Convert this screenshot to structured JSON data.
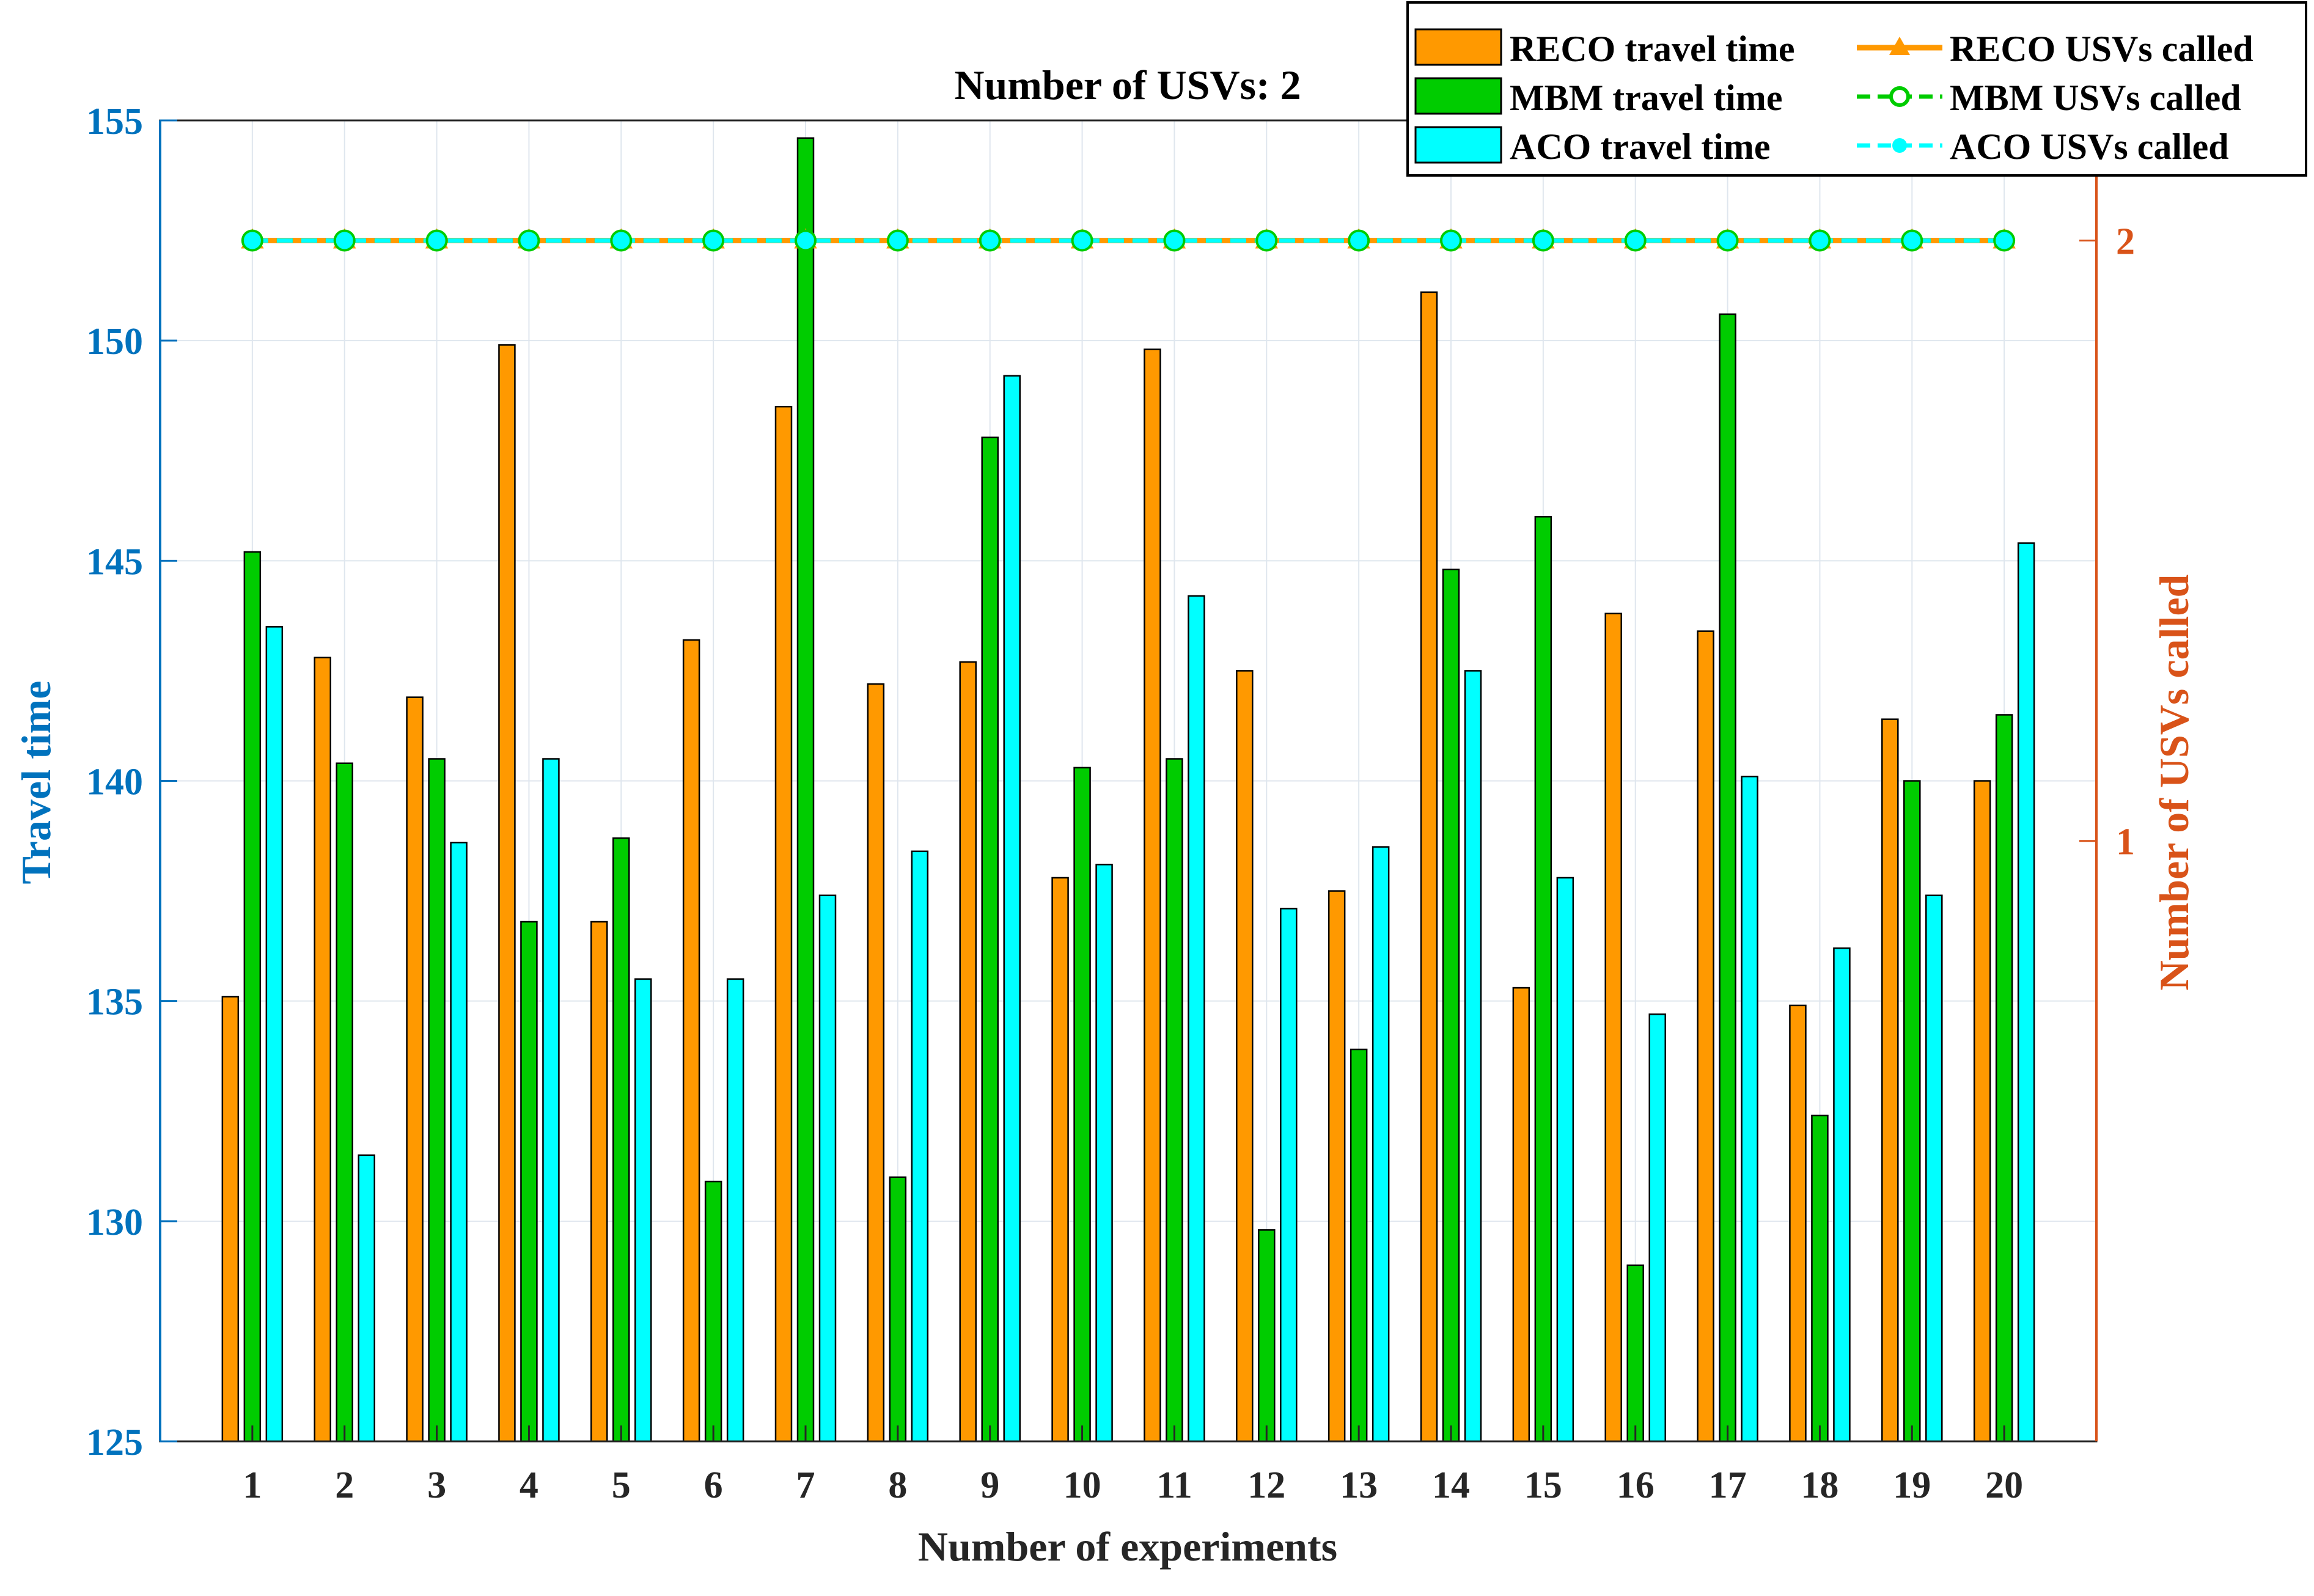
{
  "chart_data": {
    "type": "bar",
    "title": "Number of USVs: 2",
    "xlabel": "Number of experiments",
    "ylabel": "Travel time",
    "y2label": "Number of USVs called",
    "categories": [
      "1",
      "2",
      "3",
      "4",
      "5",
      "6",
      "7",
      "8",
      "9",
      "10",
      "11",
      "12",
      "13",
      "14",
      "15",
      "16",
      "17",
      "18",
      "19",
      "20"
    ],
    "ylim": [
      125,
      155
    ],
    "yticks": [
      125,
      130,
      135,
      140,
      145,
      150,
      155
    ],
    "y2lim": [
      0,
      2.2
    ],
    "y2ticks": [
      1,
      2
    ],
    "grid": true,
    "legend_position": "top-right",
    "series": [
      {
        "name": "RECO travel time",
        "color": "#ff9900",
        "values": [
          135.1,
          142.8,
          141.9,
          149.9,
          136.8,
          143.2,
          148.5,
          142.2,
          142.7,
          137.8,
          149.8,
          142.5,
          137.5,
          151.1,
          135.3,
          143.8,
          143.4,
          134.9,
          141.4,
          140.0
        ]
      },
      {
        "name": "MBM travel time",
        "color": "#00cc00",
        "values": [
          145.2,
          140.4,
          140.5,
          136.8,
          138.7,
          130.9,
          154.6,
          131.0,
          147.8,
          140.3,
          140.5,
          129.8,
          133.9,
          144.8,
          146.0,
          129.0,
          150.6,
          132.4,
          140.0,
          141.5
        ]
      },
      {
        "name": "ACO travel time",
        "color": "#00ffff",
        "values": [
          143.5,
          131.5,
          138.6,
          140.5,
          135.5,
          135.5,
          137.4,
          138.4,
          149.2,
          138.1,
          144.2,
          137.1,
          138.5,
          142.5,
          137.8,
          134.7,
          140.1,
          136.2,
          137.4,
          145.4
        ]
      }
    ],
    "lines": [
      {
        "name": "RECO USVs called",
        "color": "#ff9900",
        "marker": "triangle",
        "dash": "solid",
        "values": [
          2,
          2,
          2,
          2,
          2,
          2,
          2,
          2,
          2,
          2,
          2,
          2,
          2,
          2,
          2,
          2,
          2,
          2,
          2,
          2
        ]
      },
      {
        "name": "MBM USVs called",
        "color": "#00cc00",
        "marker": "circle",
        "dash": "dashed",
        "values": [
          2,
          2,
          2,
          2,
          2,
          2,
          2,
          2,
          2,
          2,
          2,
          2,
          2,
          2,
          2,
          2,
          2,
          2,
          2,
          2
        ]
      },
      {
        "name": "ACO USVs called",
        "color": "#00ffff",
        "marker": "dot",
        "dash": "dashed",
        "values": [
          2,
          2,
          2,
          2,
          2,
          2,
          2,
          2,
          2,
          2,
          2,
          2,
          2,
          2,
          2,
          2,
          2,
          2,
          2,
          2
        ]
      }
    ],
    "colors": {
      "left_axis": "#0072bd",
      "right_axis": "#d95319",
      "grid": "#dfe6ee"
    }
  }
}
